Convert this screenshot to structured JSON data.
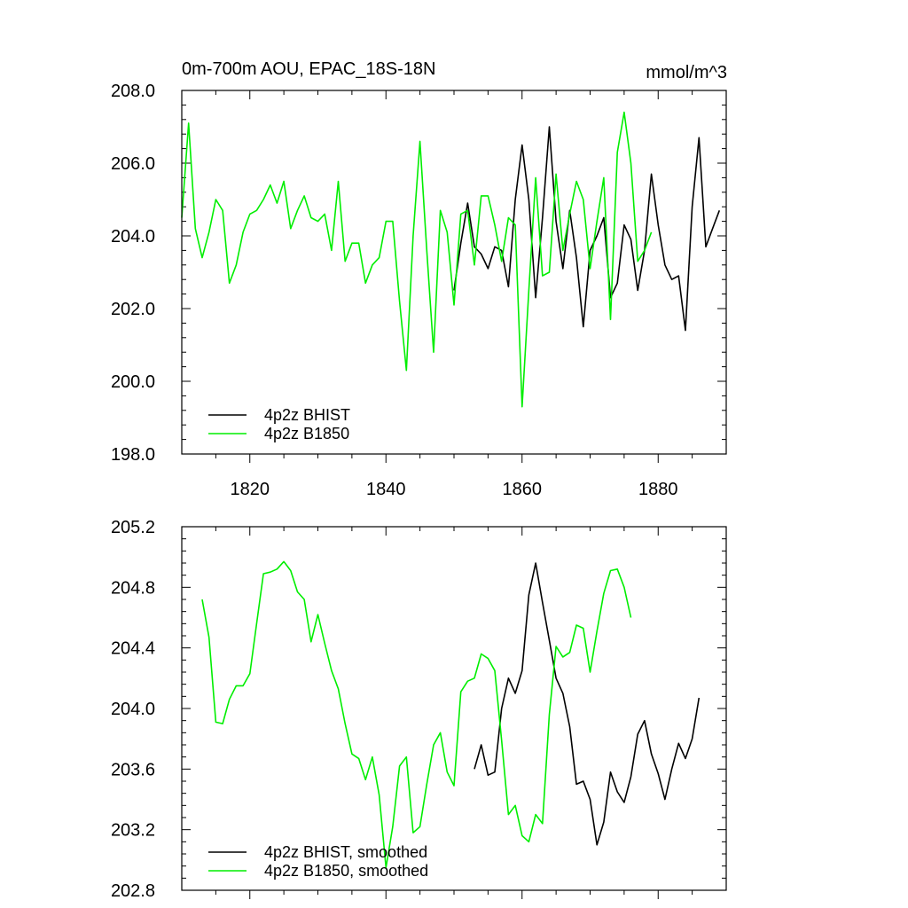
{
  "colors": {
    "bhist": "#000000",
    "b1850": "#00ee00",
    "axis": "#000000",
    "background": "#ffffff"
  },
  "chart_data": [
    {
      "type": "line",
      "title_left": "0m-700m AOU, EPAC_18S-18N",
      "title_right": "mmol/m^3",
      "xlim": [
        1810,
        1890
      ],
      "ylim": [
        198,
        208
      ],
      "y_ticks": [
        198,
        200,
        202,
        204,
        206,
        208
      ],
      "y_tick_labels": [
        "198.0",
        "200.0",
        "202.0",
        "204.0",
        "206.0",
        "208.0"
      ],
      "x_ticks": [
        1820,
        1840,
        1860,
        1880
      ],
      "x_tick_labels": [
        "1820",
        "1840",
        "1860",
        "1880"
      ],
      "legend_position": "bottom-left",
      "series": [
        {
          "name": "4p2z BHIST",
          "color": "#000000",
          "x": [
            1850,
            1851,
            1852,
            1853,
            1854,
            1855,
            1856,
            1857,
            1858,
            1859,
            1860,
            1861,
            1862,
            1863,
            1864,
            1865,
            1866,
            1867,
            1868,
            1869,
            1870,
            1871,
            1872,
            1873,
            1874,
            1875,
            1876,
            1877,
            1878,
            1879,
            1880,
            1881,
            1882,
            1883,
            1884,
            1885,
            1886,
            1887,
            1888,
            1889
          ],
          "y": [
            202.5,
            203.8,
            204.9,
            203.7,
            203.5,
            203.1,
            203.7,
            203.6,
            202.6,
            205.0,
            206.5,
            205.0,
            202.3,
            204.5,
            207.0,
            204.4,
            203.1,
            204.7,
            203.4,
            201.5,
            203.6,
            204.0,
            204.5,
            202.3,
            202.7,
            204.3,
            203.9,
            202.5,
            203.6,
            205.7,
            204.3,
            203.2,
            202.8,
            202.9,
            201.4,
            204.8,
            206.7,
            203.7,
            204.2,
            204.7
          ]
        },
        {
          "name": "4p2z B1850",
          "color": "#00ee00",
          "x": [
            1810,
            1811,
            1812,
            1813,
            1814,
            1815,
            1816,
            1817,
            1818,
            1819,
            1820,
            1821,
            1822,
            1823,
            1824,
            1825,
            1826,
            1827,
            1828,
            1829,
            1830,
            1831,
            1832,
            1833,
            1834,
            1835,
            1836,
            1837,
            1838,
            1839,
            1840,
            1841,
            1842,
            1843,
            1844,
            1845,
            1846,
            1847,
            1848,
            1849,
            1850,
            1851,
            1852,
            1853,
            1854,
            1855,
            1856,
            1857,
            1858,
            1859,
            1860,
            1861,
            1862,
            1863,
            1864,
            1865,
            1866,
            1867,
            1868,
            1869,
            1870,
            1871,
            1872,
            1873,
            1874,
            1875,
            1876,
            1877,
            1878,
            1879
          ],
          "y": [
            204.5,
            207.1,
            204.2,
            203.4,
            204.1,
            205.0,
            204.7,
            202.7,
            203.2,
            204.1,
            204.6,
            204.7,
            205.0,
            205.4,
            204.9,
            205.5,
            204.2,
            204.7,
            205.1,
            204.5,
            204.4,
            204.6,
            203.6,
            205.5,
            203.3,
            203.8,
            203.8,
            202.7,
            203.2,
            203.4,
            204.4,
            204.4,
            202.2,
            200.3,
            204.0,
            206.6,
            203.6,
            200.8,
            204.7,
            204.1,
            202.1,
            204.6,
            204.7,
            203.2,
            205.1,
            205.1,
            204.3,
            203.3,
            204.5,
            204.3,
            199.3,
            202.5,
            205.6,
            202.9,
            203.0,
            205.7,
            203.6,
            204.6,
            205.5,
            205.0,
            203.1,
            204.4,
            205.6,
            201.7,
            206.3,
            207.4,
            206.0,
            203.3,
            203.6,
            204.1
          ]
        }
      ]
    },
    {
      "type": "line",
      "xlim": [
        1810,
        1890
      ],
      "ylim": [
        202.8,
        205.2
      ],
      "y_ticks": [
        202.8,
        203.2,
        203.6,
        204.0,
        204.4,
        204.8,
        205.2
      ],
      "y_tick_labels": [
        "202.8",
        "203.2",
        "203.6",
        "204.0",
        "204.4",
        "204.8",
        "205.2"
      ],
      "x_ticks": [
        1820,
        1840,
        1860,
        1880
      ],
      "legend_position": "bottom-left",
      "series": [
        {
          "name": "4p2z BHIST, smoothed",
          "color": "#000000",
          "x": [
            1853,
            1854,
            1855,
            1856,
            1857,
            1858,
            1859,
            1860,
            1861,
            1862,
            1863,
            1864,
            1865,
            1866,
            1867,
            1868,
            1869,
            1870,
            1871,
            1872,
            1873,
            1874,
            1875,
            1876,
            1877,
            1878,
            1879,
            1880,
            1881,
            1882,
            1883,
            1884,
            1885,
            1886
          ],
          "y": [
            203.6,
            203.76,
            203.56,
            203.58,
            204.0,
            204.2,
            204.1,
            204.25,
            204.75,
            204.96,
            204.7,
            204.45,
            204.2,
            204.1,
            203.88,
            203.5,
            203.52,
            203.4,
            203.1,
            203.25,
            203.58,
            203.45,
            203.38,
            203.55,
            203.83,
            203.92,
            203.7,
            203.57,
            203.4,
            203.6,
            203.77,
            203.67,
            203.8,
            204.07
          ]
        },
        {
          "name": "4p2z B1850, smoothed",
          "color": "#00ee00",
          "x": [
            1813,
            1814,
            1815,
            1816,
            1817,
            1818,
            1819,
            1820,
            1821,
            1822,
            1823,
            1824,
            1825,
            1826,
            1827,
            1828,
            1829,
            1830,
            1831,
            1832,
            1833,
            1834,
            1835,
            1836,
            1837,
            1838,
            1839,
            1840,
            1841,
            1842,
            1843,
            1844,
            1845,
            1846,
            1847,
            1848,
            1849,
            1850,
            1851,
            1852,
            1853,
            1854,
            1855,
            1856,
            1857,
            1858,
            1859,
            1860,
            1861,
            1862,
            1863,
            1864,
            1865,
            1866,
            1867,
            1868,
            1869,
            1870,
            1871,
            1872,
            1873,
            1874,
            1875,
            1876
          ],
          "y": [
            204.72,
            204.47,
            203.91,
            203.9,
            204.06,
            204.15,
            204.15,
            204.23,
            204.56,
            204.89,
            204.9,
            204.92,
            204.97,
            204.91,
            204.77,
            204.72,
            204.44,
            204.62,
            204.43,
            204.25,
            204.13,
            203.9,
            203.7,
            203.67,
            203.53,
            203.68,
            203.43,
            202.95,
            203.22,
            203.62,
            203.68,
            203.18,
            203.22,
            203.5,
            203.76,
            203.84,
            203.58,
            203.49,
            204.11,
            204.18,
            204.2,
            204.36,
            204.33,
            204.25,
            203.79,
            203.3,
            203.36,
            203.16,
            203.12,
            203.3,
            203.24,
            203.96,
            204.41,
            204.34,
            204.37,
            204.55,
            204.53,
            204.24,
            204.51,
            204.76,
            204.91,
            204.92,
            204.8,
            204.6
          ]
        }
      ]
    }
  ]
}
